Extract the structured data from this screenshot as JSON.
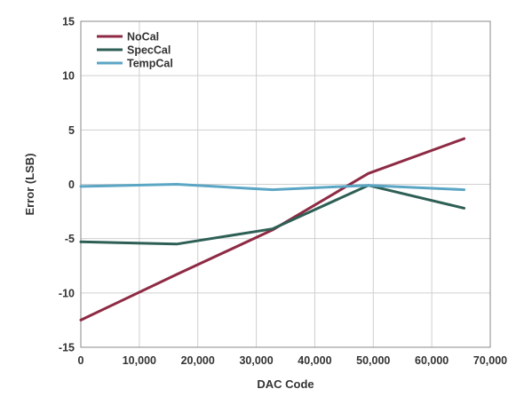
{
  "chart_data": {
    "type": "line",
    "xlabel": "DAC Code",
    "ylabel": "Error (LSB)",
    "xlim": [
      0,
      70000
    ],
    "ylim": [
      -15,
      15
    ],
    "xticks": [
      0,
      10000,
      20000,
      30000,
      40000,
      50000,
      60000,
      70000
    ],
    "xtick_labels": [
      "0",
      "10,000",
      "20,000",
      "30,000",
      "40,000",
      "50,000",
      "60,000",
      "70,000"
    ],
    "yticks": [
      15,
      10,
      5,
      0,
      -5,
      -10,
      -15
    ],
    "ytick_labels": [
      "15",
      "10",
      "5",
      "0",
      "-5",
      "-10",
      "-15"
    ],
    "grid": true,
    "legend_position": "top-left",
    "series": [
      {
        "name": "NoCal",
        "color": "#8e2a44",
        "x": [
          0,
          16384,
          32768,
          49152,
          65535
        ],
        "y": [
          -12.5,
          -8.3,
          -4.2,
          1.0,
          4.2
        ]
      },
      {
        "name": "SpecCal",
        "color": "#2e5f55",
        "x": [
          0,
          16384,
          32768,
          49152,
          65535
        ],
        "y": [
          -5.3,
          -5.5,
          -4.1,
          -0.1,
          -2.2
        ]
      },
      {
        "name": "TempCal",
        "color": "#5ba6c4",
        "x": [
          0,
          16384,
          32768,
          49152,
          65535
        ],
        "y": [
          -0.2,
          0.0,
          -0.5,
          -0.1,
          -0.5
        ]
      }
    ]
  }
}
